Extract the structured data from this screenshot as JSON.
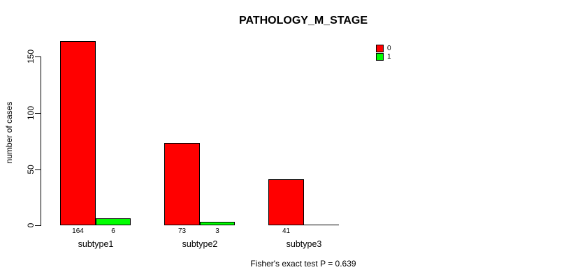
{
  "chart_data": {
    "type": "bar",
    "title": "PATHOLOGY_M_STAGE",
    "ylabel": "number of cases",
    "xlabel": "",
    "categories": [
      "subtype1",
      "subtype2",
      "subtype3"
    ],
    "series": [
      {
        "name": "0",
        "color": "#FF0000",
        "values": [
          164,
          73,
          41
        ]
      },
      {
        "name": "1",
        "color": "#00FF00",
        "values": [
          6,
          3,
          0
        ]
      }
    ],
    "bar_value_labels": [
      [
        164,
        6
      ],
      [
        73,
        3
      ],
      [
        41,
        null
      ]
    ],
    "yticks": [
      0,
      50,
      100,
      150
    ],
    "ylim": [
      0,
      164
    ],
    "grid": false,
    "legend_position": "top-right",
    "annotation": "Fisher's exact test P = 0.639"
  }
}
